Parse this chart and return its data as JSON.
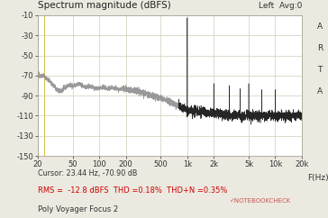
{
  "title": "Spectrum magnitude (dBFS)",
  "top_right_label": "Left  Avg:0",
  "right_label_chars": [
    "A",
    "R",
    "T",
    "A"
  ],
  "xlabel": "F(Hz)",
  "cursor_text": "Cursor: 23.44 Hz, -70.90 dB",
  "rms_text": "RMS =  -12.8 dBFS  THD =0.18%  THD+N =0.35%",
  "device_text": "Poly Voyager Focus 2",
  "ylim": [
    -150,
    -10
  ],
  "yticks": [
    -150,
    -130,
    -110,
    -90,
    -70,
    -50,
    -30,
    -10
  ],
  "xticks_log": [
    20,
    50,
    100,
    200,
    500,
    1000,
    2000,
    5000,
    10000,
    20000
  ],
  "xtick_labels": [
    "20",
    "50",
    "100",
    "200",
    "500",
    "1k",
    "2k",
    "5k",
    "10k",
    "20k"
  ],
  "bg_color": "#ece9e0",
  "plot_bg_color": "#ffffff",
  "grid_color": "#d0cdb8",
  "noise_color": "#909090",
  "signal_color": "#1a1a1a",
  "title_fontsize": 7.5,
  "label_fontsize": 6.5,
  "tick_fontsize": 6,
  "cursor_marker_x": 23.44,
  "main_peak_y": -12.5
}
